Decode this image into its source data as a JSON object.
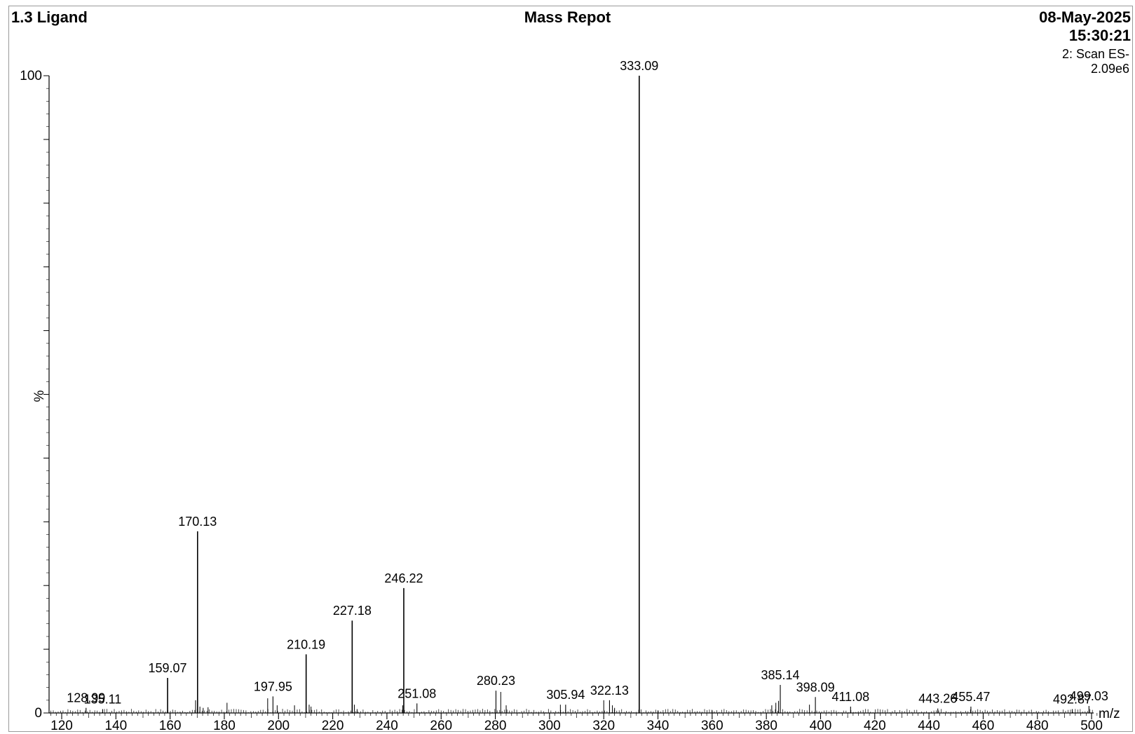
{
  "header": {
    "sample": "1.3 Ligand",
    "title": "Mass Repot",
    "date": "08-May-2025",
    "time": "15:30:21",
    "scan": "2: Scan ES-",
    "intensity": "2.09e6"
  },
  "chart_data": {
    "type": "bar",
    "title": "Mass Repot",
    "xlabel": "m/z",
    "ylabel": "%",
    "xlim": [
      115,
      502
    ],
    "ylim": [
      0,
      100
    ],
    "x_ticks": [
      120,
      140,
      160,
      180,
      200,
      220,
      240,
      260,
      280,
      300,
      320,
      340,
      360,
      380,
      400,
      420,
      440,
      460,
      480,
      500
    ],
    "y_ticks": [
      0,
      100
    ],
    "labeled_peaks": [
      {
        "mz": 128.99,
        "intensity": 0.8,
        "label": "128.99"
      },
      {
        "mz": 135.11,
        "intensity": 0.6,
        "label": "135.11"
      },
      {
        "mz": 159.07,
        "intensity": 5.5,
        "label": "159.07"
      },
      {
        "mz": 170.13,
        "intensity": 28.5,
        "label": "170.13"
      },
      {
        "mz": 197.95,
        "intensity": 2.6,
        "label": "197.95"
      },
      {
        "mz": 210.19,
        "intensity": 9.2,
        "label": "210.19"
      },
      {
        "mz": 227.18,
        "intensity": 14.5,
        "label": "227.18"
      },
      {
        "mz": 246.22,
        "intensity": 19.6,
        "label": "246.22"
      },
      {
        "mz": 251.08,
        "intensity": 1.5,
        "label": "251.08"
      },
      {
        "mz": 280.23,
        "intensity": 3.5,
        "label": "280.23"
      },
      {
        "mz": 305.94,
        "intensity": 1.3,
        "label": "305.94"
      },
      {
        "mz": 322.13,
        "intensity": 2.0,
        "label": "322.13"
      },
      {
        "mz": 333.09,
        "intensity": 100,
        "label": "333.09"
      },
      {
        "mz": 385.14,
        "intensity": 4.4,
        "label": "385.14"
      },
      {
        "mz": 398.09,
        "intensity": 2.5,
        "label": "398.09"
      },
      {
        "mz": 411.08,
        "intensity": 1.0,
        "label": "411.08"
      },
      {
        "mz": 443.26,
        "intensity": 0.7,
        "label": "443.26"
      },
      {
        "mz": 455.47,
        "intensity": 1.0,
        "label": "455.47"
      },
      {
        "mz": 492.87,
        "intensity": 0.6,
        "label": "492.87"
      },
      {
        "mz": 499.03,
        "intensity": 1.1,
        "label": "499.03"
      }
    ],
    "minor_peaks": [
      [
        169.4,
        2.0
      ],
      [
        171.0,
        1.0
      ],
      [
        172.2,
        0.8
      ],
      [
        174.0,
        0.9
      ],
      [
        181.0,
        1.6
      ],
      [
        196.0,
        2.3
      ],
      [
        199.5,
        1.2
      ],
      [
        205.9,
        1.2
      ],
      [
        211.3,
        1.3
      ],
      [
        212.0,
        1.0
      ],
      [
        228.0,
        1.3
      ],
      [
        229.0,
        0.6
      ],
      [
        245.8,
        1.2
      ],
      [
        282.0,
        3.3
      ],
      [
        284.0,
        1.2
      ],
      [
        304.0,
        1.3
      ],
      [
        320.0,
        2.0
      ],
      [
        323.2,
        1.2
      ],
      [
        324.0,
        0.8
      ],
      [
        382.0,
        1.2
      ],
      [
        383.5,
        1.6
      ],
      [
        384.5,
        1.9
      ],
      [
        395.9,
        1.3
      ],
      [
        340.0,
        0.4
      ],
      [
        360.0,
        0.4
      ]
    ]
  }
}
